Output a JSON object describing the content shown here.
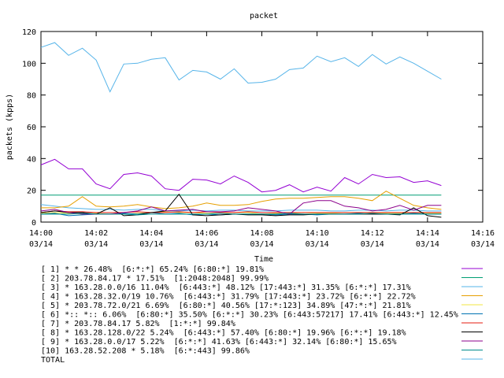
{
  "chart_data": {
    "type": "line",
    "title": "packet",
    "xlabel": "Time",
    "ylabel": "packets (kpps)",
    "ylim": [
      0,
      120
    ],
    "yticks": [
      0,
      20,
      40,
      60,
      80,
      100,
      120
    ],
    "xlim": [
      0,
      16
    ],
    "xticks": [
      {
        "at": 0,
        "time": "14:00",
        "date": "03/14"
      },
      {
        "at": 2,
        "time": "14:02",
        "date": "03/14"
      },
      {
        "at": 4,
        "time": "14:04",
        "date": "03/14"
      },
      {
        "at": 6,
        "time": "14:06",
        "date": "03/14"
      },
      {
        "at": 8,
        "time": "14:08",
        "date": "03/14"
      },
      {
        "at": 10,
        "time": "14:10",
        "date": "03/14"
      },
      {
        "at": 12,
        "time": "14:12",
        "date": "03/14"
      },
      {
        "at": 14,
        "time": "14:14",
        "date": "03/14"
      },
      {
        "at": 16,
        "time": "14:16",
        "date": "03/14"
      }
    ],
    "grid": false,
    "legend_position": "bottom",
    "x": [
      0,
      0.5,
      1,
      1.5,
      2,
      2.5,
      3,
      3.5,
      4,
      4.5,
      5,
      5.5,
      6,
      6.5,
      7,
      7.5,
      8,
      8.5,
      9,
      9.5,
      10,
      10.5,
      11,
      11.5,
      12,
      12.5,
      13,
      13.5,
      14,
      14.5
    ],
    "series": [
      {
        "name": "[ 1] * * 26.48%  [6:*:*] 65.24% [6:80:*] 19.81%",
        "color": "#9400d3",
        "values": [
          36,
          39.5,
          33.5,
          33.5,
          24,
          21,
          30,
          31,
          29,
          21,
          20,
          27,
          26.5,
          24,
          29,
          25,
          19,
          20,
          23.5,
          19,
          22,
          19.5,
          28,
          24,
          30,
          28,
          28.5,
          25,
          26,
          23
        ]
      },
      {
        "name": "[ 2] 203.78.84.17 * 17.51%  [1:2048:2048] 99.99%",
        "color": "#009e73",
        "values": [
          17,
          17,
          17,
          17,
          17,
          17,
          17,
          17,
          17,
          17,
          17,
          17,
          17,
          17,
          17,
          17,
          17,
          17,
          17,
          17,
          17,
          17,
          17,
          17,
          17,
          17,
          17,
          17,
          17,
          17
        ]
      },
      {
        "name": "[ 3] * 163.28.0.0/16 11.04%  [6:443:*] 48.12% [17:443:*] 31.35% [6:*:*] 17.31%",
        "color": "#56b4e9",
        "values": [
          11,
          10,
          9,
          8.5,
          8,
          8,
          7.5,
          8,
          8,
          7,
          7,
          7.5,
          7,
          7.5,
          7.5,
          7,
          7,
          7,
          7.5,
          7.5,
          7.5,
          7,
          7,
          7.5,
          7.5,
          7,
          7.5,
          7.5,
          7,
          7
        ]
      },
      {
        "name": "[ 4] * 163.28.32.0/19 10.76%  [6:443:*] 31.79% [17:443:*] 23.72% [6:*:*] 22.72%",
        "color": "#e69f00",
        "values": [
          9,
          9,
          10,
          16,
          10,
          9.5,
          10,
          11,
          9.5,
          8.5,
          9,
          10,
          12,
          10.5,
          10.5,
          11,
          13,
          14.5,
          15,
          15,
          15.5,
          16,
          16,
          15,
          13.5,
          19.5,
          15,
          10.5,
          9,
          8
        ]
      },
      {
        "name": "[ 5] * 203.78.72.0/21 6.69%  [6:80:*] 40.56% [17:*:123] 34.89% [47:*:*] 21.81%",
        "color": "#f0e442",
        "values": [
          5.5,
          6,
          5.5,
          5,
          5.5,
          5,
          5,
          5.5,
          6,
          6.5,
          6,
          6,
          5.5,
          5.5,
          6,
          6,
          5,
          5.5,
          5.5,
          6,
          5.5,
          5.5,
          6,
          6,
          6,
          5.5,
          5.5,
          6,
          5.5,
          5.5
        ]
      },
      {
        "name": "[ 6] *:: *:: 6.06%  [6:80:*] 35.50% [6:*:*] 30.23% [6:443:57217] 17.41% [6:443:*] 12.45%",
        "color": "#0072b2",
        "values": [
          5,
          5.5,
          4,
          4.5,
          5,
          5,
          5.5,
          5,
          6,
          5,
          5.5,
          4.5,
          5,
          4.5,
          5,
          5,
          5,
          4.5,
          5,
          5,
          4.5,
          5,
          5,
          5.5,
          5,
          5,
          5,
          5.5,
          5,
          5
        ]
      },
      {
        "name": "[ 7] * 203.78.84.17 5.82%  [1:*:*] 99.84%",
        "color": "#e51e10",
        "values": [
          6,
          7,
          6.5,
          6.5,
          6,
          6,
          6,
          6.5,
          6,
          6,
          6.5,
          6,
          6.5,
          6,
          6,
          6.5,
          6,
          6,
          6,
          6,
          6,
          6,
          6,
          6,
          6,
          6,
          6,
          6,
          6,
          6
        ]
      },
      {
        "name": "[ 8] * 163.28.128.0/22 5.24%  [6:443:*] 57.40% [6:80:*] 19.96% [6:*:*] 19.18%",
        "color": "#000000",
        "values": [
          6,
          7,
          6,
          6,
          5,
          9,
          4,
          4.5,
          6,
          7,
          17.5,
          4.5,
          4,
          4.5,
          5,
          4.5,
          4.5,
          4,
          4.5,
          4.5,
          5,
          5,
          5,
          5,
          5,
          5,
          4.5,
          9,
          4,
          3
        ]
      },
      {
        "name": "[ 9] * 163.28.0.0/17 5.22%  [6:*:*] 41.63% [6:443:*] 32.14% [6:80:*] 15.65%",
        "color": "#8b008b",
        "values": [
          7,
          8,
          6,
          5,
          5,
          5,
          6,
          7,
          9.5,
          7,
          7.5,
          8,
          6.5,
          6.5,
          7,
          9,
          8,
          7,
          5,
          12,
          13.5,
          13.5,
          10,
          9,
          7,
          8,
          10.5,
          7.5,
          10.5,
          10.5
        ]
      },
      {
        "name": "[10] 163.28.52.208 * 5.18%  [6:*:443] 99.86%",
        "color": "#008b8b",
        "values": [
          5,
          5,
          5,
          5.5,
          5,
          5,
          5,
          4.5,
          5,
          5,
          5,
          5,
          5,
          5.5,
          5,
          5,
          5,
          5,
          5.5,
          5,
          5,
          5,
          5,
          5,
          5.5,
          5,
          5,
          5,
          5,
          5
        ]
      },
      {
        "name": "TOTAL",
        "color": "#56b4e9",
        "values": [
          110,
          113,
          105,
          109.5,
          102,
          82,
          99.5,
          100,
          102.5,
          103.5,
          89.5,
          95.5,
          94.5,
          90,
          96.5,
          87.5,
          88,
          90,
          96,
          97,
          104.5,
          101,
          103.5,
          98,
          105.5,
          99.5,
          104,
          100,
          95,
          90
        ]
      }
    ]
  }
}
